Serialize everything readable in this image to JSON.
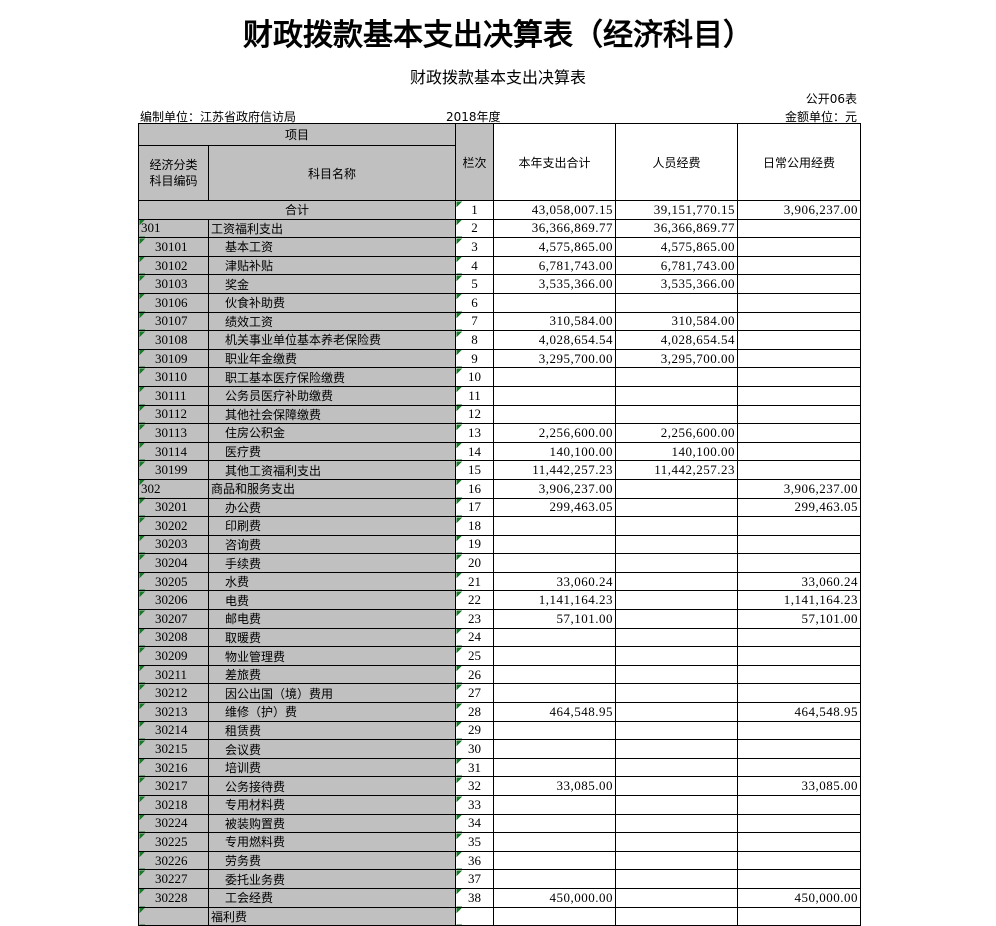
{
  "header": {
    "title": "财政拨款基本支出决算表（经济科目）",
    "subtitle": "财政拨款基本支出决算表",
    "form_no": "公开06表",
    "unit": "编制单位：江苏省政府信访局",
    "year": "2018年度",
    "currency": "金额单位：元"
  },
  "table": {
    "columns": {
      "item": "项目",
      "code": "经济分类科目编码",
      "name": "科目名称",
      "line": "栏次",
      "total": "本年支出合计",
      "personnel": "人员经费",
      "public": "日常公用经费"
    },
    "rows": [
      [
        null,
        "合计",
        "1",
        "43,058,007.15",
        "39,151,770.15",
        "3,906,237.00"
      ],
      [
        "301",
        "工资福利支出",
        "2",
        "36,366,869.77",
        "36,366,869.77",
        null
      ],
      [
        "30101",
        "基本工资",
        "3",
        "4,575,865.00",
        "4,575,865.00",
        null
      ],
      [
        "30102",
        "津贴补贴",
        "4",
        "6,781,743.00",
        "6,781,743.00",
        null
      ],
      [
        "30103",
        "奖金",
        "5",
        "3,535,366.00",
        "3,535,366.00",
        null
      ],
      [
        "30106",
        "伙食补助费",
        "6",
        null,
        null,
        null
      ],
      [
        "30107",
        "绩效工资",
        "7",
        "310,584.00",
        "310,584.00",
        null
      ],
      [
        "30108",
        "机关事业单位基本养老保险费",
        "8",
        "4,028,654.54",
        "4,028,654.54",
        null
      ],
      [
        "30109",
        "职业年金缴费",
        "9",
        "3,295,700.00",
        "3,295,700.00",
        null
      ],
      [
        "30110",
        "职工基本医疗保险缴费",
        "10",
        null,
        null,
        null
      ],
      [
        "30111",
        "公务员医疗补助缴费",
        "11",
        null,
        null,
        null
      ],
      [
        "30112",
        "其他社会保障缴费",
        "12",
        null,
        null,
        null
      ],
      [
        "30113",
        "住房公积金",
        "13",
        "2,256,600.00",
        "2,256,600.00",
        null
      ],
      [
        "30114",
        "医疗费",
        "14",
        "140,100.00",
        "140,100.00",
        null
      ],
      [
        "30199",
        "其他工资福利支出",
        "15",
        "11,442,257.23",
        "11,442,257.23",
        null
      ],
      [
        "302",
        "商品和服务支出",
        "16",
        "3,906,237.00",
        null,
        "3,906,237.00"
      ],
      [
        "30201",
        "办公费",
        "17",
        "299,463.05",
        null,
        "299,463.05"
      ],
      [
        "30202",
        "印刷费",
        "18",
        null,
        null,
        null
      ],
      [
        "30203",
        "咨询费",
        "19",
        null,
        null,
        null
      ],
      [
        "30204",
        "手续费",
        "20",
        null,
        null,
        null
      ],
      [
        "30205",
        "水费",
        "21",
        "33,060.24",
        null,
        "33,060.24"
      ],
      [
        "30206",
        "电费",
        "22",
        "1,141,164.23",
        null,
        "1,141,164.23"
      ],
      [
        "30207",
        "邮电费",
        "23",
        "57,101.00",
        null,
        "57,101.00"
      ],
      [
        "30208",
        "取暖费",
        "24",
        null,
        null,
        null
      ],
      [
        "30209",
        "物业管理费",
        "25",
        null,
        null,
        null
      ],
      [
        "30211",
        "差旅费",
        "26",
        null,
        null,
        null
      ],
      [
        "30212",
        "因公出国（境）费用",
        "27",
        null,
        null,
        null
      ],
      [
        "30213",
        "维修（护）费",
        "28",
        "464,548.95",
        null,
        "464,548.95"
      ],
      [
        "30214",
        "租赁费",
        "29",
        null,
        null,
        null
      ],
      [
        "30215",
        "会议费",
        "30",
        null,
        null,
        null
      ],
      [
        "30216",
        "培训费",
        "31",
        null,
        null,
        null
      ],
      [
        "30217",
        "公务接待费",
        "32",
        "33,085.00",
        null,
        "33,085.00"
      ],
      [
        "30218",
        "专用材料费",
        "33",
        null,
        null,
        null
      ],
      [
        "30224",
        "被装购置费",
        "34",
        null,
        null,
        null
      ],
      [
        "30225",
        "专用燃料费",
        "35",
        null,
        null,
        null
      ],
      [
        "30226",
        "劳务费",
        "36",
        null,
        null,
        null
      ],
      [
        "30227",
        "委托业务费",
        "37",
        null,
        null,
        null
      ],
      [
        "30228",
        "工会经费",
        "38",
        "450,000.00",
        null,
        "450,000.00"
      ],
      [
        null,
        "福利费",
        null,
        null,
        null,
        null
      ]
    ]
  }
}
